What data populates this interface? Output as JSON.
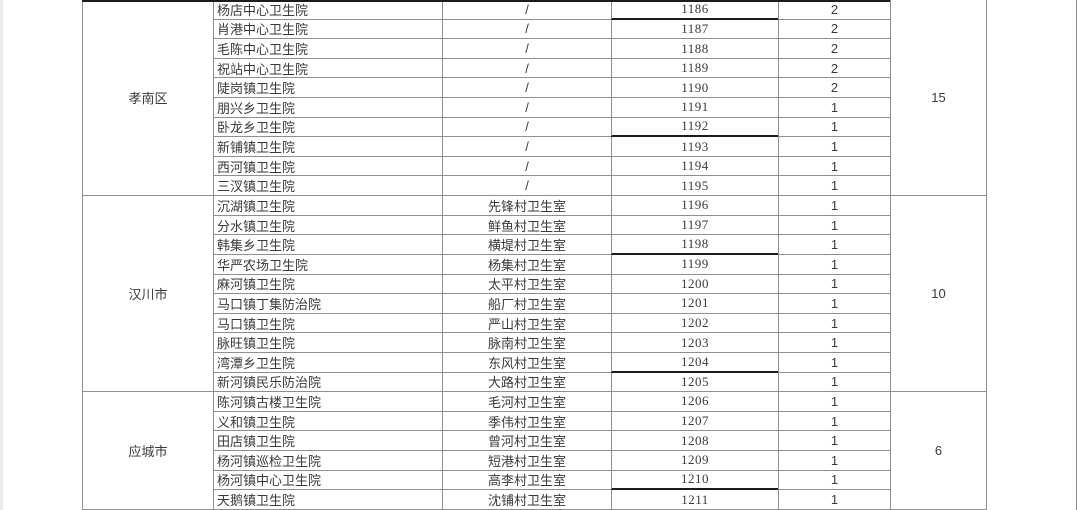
{
  "colors": {
    "grid_line": "#8f8f8f",
    "dark_border": "#1b1b1b",
    "text": "#3a3a3a",
    "left_edge_strip": "#ebebeb",
    "background": "#ffffff"
  },
  "table": {
    "sections": [
      {
        "region": "孝南区",
        "total": "15",
        "rows": [
          {
            "hospital": "杨店中心卫生院",
            "village": "/",
            "serial": "1186",
            "count": "2",
            "dark_bottom": true
          },
          {
            "hospital": "肖港中心卫生院",
            "village": "/",
            "serial": "1187",
            "count": "2"
          },
          {
            "hospital": "毛陈中心卫生院",
            "village": "/",
            "serial": "1188",
            "count": "2"
          },
          {
            "hospital": "祝站中心卫生院",
            "village": "/",
            "serial": "1189",
            "count": "2"
          },
          {
            "hospital": "陡岗镇卫生院",
            "village": "/",
            "serial": "1190",
            "count": "2"
          },
          {
            "hospital": "朋兴乡卫生院",
            "village": "/",
            "serial": "1191",
            "count": "1"
          },
          {
            "hospital": "卧龙乡卫生院",
            "village": "/",
            "serial": "1192",
            "count": "1",
            "dark_bottom": true
          },
          {
            "hospital": "新铺镇卫生院",
            "village": "/",
            "serial": "1193",
            "count": "1"
          },
          {
            "hospital": "西河镇卫生院",
            "village": "/",
            "serial": "1194",
            "count": "1"
          },
          {
            "hospital": "三汊镇卫生院",
            "village": "/",
            "serial": "1195",
            "count": "1"
          }
        ]
      },
      {
        "region": "汉川市",
        "total": "10",
        "rows": [
          {
            "hospital": "沉湖镇卫生院",
            "village": "先锋村卫生室",
            "serial": "1196",
            "count": "1"
          },
          {
            "hospital": "分水镇卫生院",
            "village": "鲜鱼村卫生室",
            "serial": "1197",
            "count": "1"
          },
          {
            "hospital": "韩集乡卫生院",
            "village": "横堤村卫生室",
            "serial": "1198",
            "count": "1",
            "dark_bottom": true
          },
          {
            "hospital": "华严农场卫生院",
            "village": "杨集村卫生室",
            "serial": "1199",
            "count": "1"
          },
          {
            "hospital": "麻河镇卫生院",
            "village": "太平村卫生室",
            "serial": "1200",
            "count": "1"
          },
          {
            "hospital": "马口镇丁集防治院",
            "village": "船厂村卫生室",
            "serial": "1201",
            "count": "1"
          },
          {
            "hospital": "马口镇卫生院",
            "village": "严山村卫生室",
            "serial": "1202",
            "count": "1"
          },
          {
            "hospital": "脉旺镇卫生院",
            "village": "脉南村卫生室",
            "serial": "1203",
            "count": "1"
          },
          {
            "hospital": "湾潭乡卫生院",
            "village": "东风村卫生室",
            "serial": "1204",
            "count": "1",
            "dark_bottom": true
          },
          {
            "hospital": "新河镇民乐防治院",
            "village": "大路村卫生室",
            "serial": "1205",
            "count": "1"
          }
        ]
      },
      {
        "region": "应城市",
        "total": "6",
        "rows": [
          {
            "hospital": "陈河镇古楼卫生院",
            "village": "毛河村卫生室",
            "serial": "1206",
            "count": "1"
          },
          {
            "hospital": "义和镇卫生院",
            "village": "季伟村卫生室",
            "serial": "1207",
            "count": "1"
          },
          {
            "hospital": "田店镇卫生院",
            "village": "曾河村卫生室",
            "serial": "1208",
            "count": "1"
          },
          {
            "hospital": "杨河镇巡检卫生院",
            "village": "短港村卫生室",
            "serial": "1209",
            "count": "1"
          },
          {
            "hospital": "杨河镇中心卫生院",
            "village": "高李村卫生室",
            "serial": "1210",
            "count": "1",
            "dark_bottom": true
          },
          {
            "hospital": "天鹅镇卫生院",
            "village": "沈铺村卫生室",
            "serial": "1211",
            "count": "1"
          }
        ]
      }
    ]
  }
}
